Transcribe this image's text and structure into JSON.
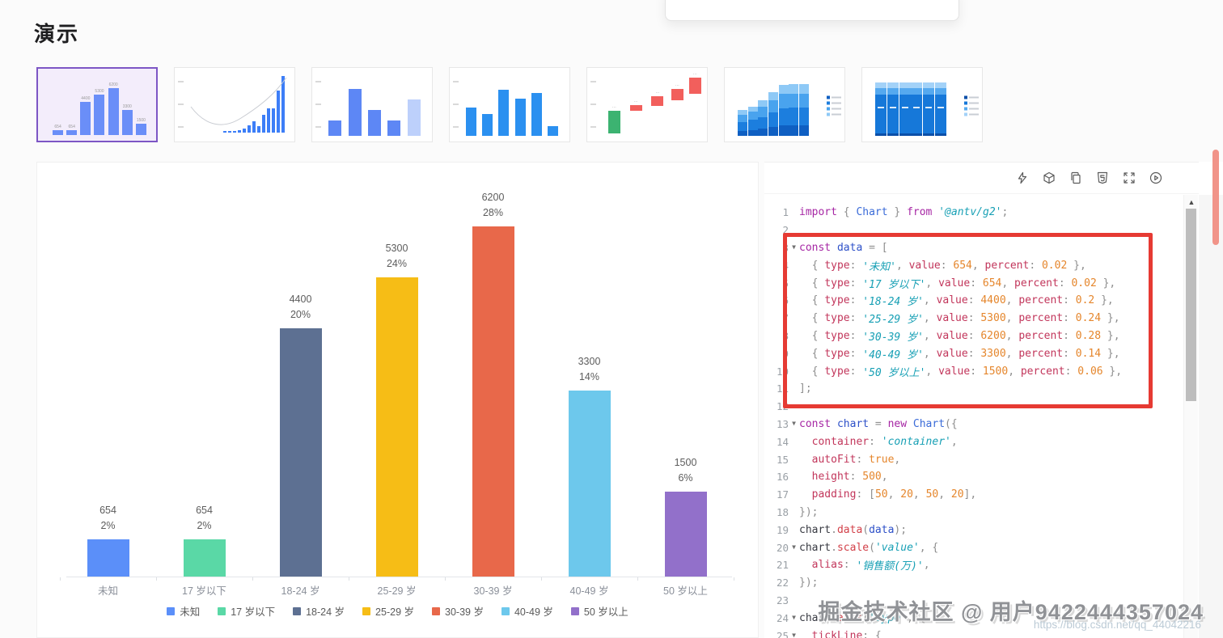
{
  "page": {
    "title": "演示"
  },
  "colors": {
    "thumb_selected_border": "#7d56c5",
    "thumb_selected_bg": "#f3edfb",
    "annotation_red": "#e63a33",
    "page_scrollbar": "#f19489"
  },
  "thumbnails": [
    {
      "name": "labeled-column-chart",
      "selected": true,
      "kind": "bars",
      "color": "#6a8ef8",
      "values": [
        654,
        654,
        4400,
        5300,
        6200,
        3300,
        1500
      ],
      "max": 6200,
      "show_labels": true,
      "axis": false
    },
    {
      "name": "curve-column-chart",
      "selected": false,
      "kind": "curve",
      "color": "#3d7ef7"
    },
    {
      "name": "basic-column-chart",
      "selected": false,
      "kind": "bars",
      "color": "#5d87f5",
      "values": [
        32,
        100,
        56,
        32,
        78
      ],
      "max": 100,
      "last_light": "#bdd0fb",
      "axis": true
    },
    {
      "name": "blue-column-chart",
      "selected": false,
      "kind": "bars",
      "color": "#2b90f0",
      "values": [
        60,
        46,
        98,
        80,
        92,
        20
      ],
      "max": 100,
      "axis": true
    },
    {
      "name": "waterfall-chart",
      "selected": false,
      "kind": "waterfall",
      "green": "#3cb371",
      "red": "#f25f5c"
    },
    {
      "name": "stacked-column-ascending",
      "selected": false,
      "kind": "stacked1",
      "totals": [
        48,
        55,
        66,
        82,
        96,
        97,
        97
      ],
      "segment_colors": [
        "#0f5fc2",
        "#1c7ede",
        "#49a3ee",
        "#8ec9f6"
      ],
      "fractions": [
        0.2,
        0.34,
        0.28,
        0.18
      ]
    },
    {
      "name": "stacked-column-full",
      "selected": false,
      "kind": "stacked2",
      "count": 6,
      "segment_colors": [
        "#0b4fa8",
        "#1678d9",
        "#55a9ef",
        "#a3d2f8"
      ],
      "fractions": [
        0.05,
        0.72,
        0.13,
        0.1
      ]
    }
  ],
  "chart_data": {
    "type": "bar",
    "categories": [
      "未知",
      "17 岁以下",
      "18-24 岁",
      "25-29 岁",
      "30-39 岁",
      "40-49 岁",
      "50 岁以上"
    ],
    "values": [
      654,
      654,
      4400,
      5300,
      6200,
      3300,
      1500
    ],
    "percent_labels": [
      "2%",
      "2%",
      "20%",
      "24%",
      "28%",
      "14%",
      "6%"
    ],
    "colors": [
      "#5B8FF9",
      "#5AD8A6",
      "#5D7092",
      "#F6BD16",
      "#E8684A",
      "#6DC8EC",
      "#9270CA"
    ],
    "legend": [
      "未知",
      "17 岁以下",
      "18-24 岁",
      "25-29 岁",
      "30-39 岁",
      "40-49 岁",
      "50 岁以上"
    ],
    "legend_position": "bottom",
    "grid": false,
    "title": "",
    "xlabel": "",
    "ylabel": "",
    "ylim": [
      0,
      6200
    ]
  },
  "editor": {
    "toolbar_icons": [
      "thunderbolt-icon",
      "codesandbox-icon",
      "copy-icon",
      "html5-icon",
      "fullscreen-icon",
      "play-circle-icon"
    ],
    "lines": [
      {
        "n": 1,
        "fold": false,
        "tokens": [
          [
            "kw",
            "import"
          ],
          [
            "pun",
            " { "
          ],
          [
            "cls",
            "Chart"
          ],
          [
            "pun",
            " } "
          ],
          [
            "kw",
            "from"
          ],
          [
            "pun",
            " "
          ],
          [
            "str",
            "'@antv/g2'"
          ],
          [
            "pun",
            ";"
          ]
        ]
      },
      {
        "n": 2,
        "fold": false,
        "tokens": []
      },
      {
        "n": 3,
        "fold": true,
        "tokens": [
          [
            "kw",
            "const"
          ],
          [
            "pun",
            " "
          ],
          [
            "def",
            "data"
          ],
          [
            "pun",
            " = ["
          ]
        ]
      },
      {
        "n": 4,
        "fold": false,
        "tokens": [
          [
            "pun",
            "  { "
          ],
          [
            "prop",
            "type"
          ],
          [
            "pun",
            ": "
          ],
          [
            "str",
            "'未知'"
          ],
          [
            "pun",
            ", "
          ],
          [
            "prop",
            "value"
          ],
          [
            "pun",
            ": "
          ],
          [
            "num",
            "654"
          ],
          [
            "pun",
            ", "
          ],
          [
            "prop",
            "percent"
          ],
          [
            "pun",
            ": "
          ],
          [
            "num",
            "0.02"
          ],
          [
            "pun",
            " },"
          ]
        ]
      },
      {
        "n": 5,
        "fold": false,
        "tokens": [
          [
            "pun",
            "  { "
          ],
          [
            "prop",
            "type"
          ],
          [
            "pun",
            ": "
          ],
          [
            "str",
            "'17 岁以下'"
          ],
          [
            "pun",
            ", "
          ],
          [
            "prop",
            "value"
          ],
          [
            "pun",
            ": "
          ],
          [
            "num",
            "654"
          ],
          [
            "pun",
            ", "
          ],
          [
            "prop",
            "percent"
          ],
          [
            "pun",
            ": "
          ],
          [
            "num",
            "0.02"
          ],
          [
            "pun",
            " },"
          ]
        ]
      },
      {
        "n": 6,
        "fold": false,
        "tokens": [
          [
            "pun",
            "  { "
          ],
          [
            "prop",
            "type"
          ],
          [
            "pun",
            ": "
          ],
          [
            "str",
            "'18-24 岁'"
          ],
          [
            "pun",
            ", "
          ],
          [
            "prop",
            "value"
          ],
          [
            "pun",
            ": "
          ],
          [
            "num",
            "4400"
          ],
          [
            "pun",
            ", "
          ],
          [
            "prop",
            "percent"
          ],
          [
            "pun",
            ": "
          ],
          [
            "num",
            "0.2"
          ],
          [
            "pun",
            " },"
          ]
        ]
      },
      {
        "n": 7,
        "fold": false,
        "tokens": [
          [
            "pun",
            "  { "
          ],
          [
            "prop",
            "type"
          ],
          [
            "pun",
            ": "
          ],
          [
            "str",
            "'25-29 岁'"
          ],
          [
            "pun",
            ", "
          ],
          [
            "prop",
            "value"
          ],
          [
            "pun",
            ": "
          ],
          [
            "num",
            "5300"
          ],
          [
            "pun",
            ", "
          ],
          [
            "prop",
            "percent"
          ],
          [
            "pun",
            ": "
          ],
          [
            "num",
            "0.24"
          ],
          [
            "pun",
            " },"
          ]
        ]
      },
      {
        "n": 8,
        "fold": false,
        "tokens": [
          [
            "pun",
            "  { "
          ],
          [
            "prop",
            "type"
          ],
          [
            "pun",
            ": "
          ],
          [
            "str",
            "'30-39 岁'"
          ],
          [
            "pun",
            ", "
          ],
          [
            "prop",
            "value"
          ],
          [
            "pun",
            ": "
          ],
          [
            "num",
            "6200"
          ],
          [
            "pun",
            ", "
          ],
          [
            "prop",
            "percent"
          ],
          [
            "pun",
            ": "
          ],
          [
            "num",
            "0.28"
          ],
          [
            "pun",
            " },"
          ]
        ]
      },
      {
        "n": 9,
        "fold": false,
        "tokens": [
          [
            "pun",
            "  { "
          ],
          [
            "prop",
            "type"
          ],
          [
            "pun",
            ": "
          ],
          [
            "str",
            "'40-49 岁'"
          ],
          [
            "pun",
            ", "
          ],
          [
            "prop",
            "value"
          ],
          [
            "pun",
            ": "
          ],
          [
            "num",
            "3300"
          ],
          [
            "pun",
            ", "
          ],
          [
            "prop",
            "percent"
          ],
          [
            "pun",
            ": "
          ],
          [
            "num",
            "0.14"
          ],
          [
            "pun",
            " },"
          ]
        ]
      },
      {
        "n": 10,
        "fold": false,
        "tokens": [
          [
            "pun",
            "  { "
          ],
          [
            "prop",
            "type"
          ],
          [
            "pun",
            ": "
          ],
          [
            "str",
            "'50 岁以上'"
          ],
          [
            "pun",
            ", "
          ],
          [
            "prop",
            "value"
          ],
          [
            "pun",
            ": "
          ],
          [
            "num",
            "1500"
          ],
          [
            "pun",
            ", "
          ],
          [
            "prop",
            "percent"
          ],
          [
            "pun",
            ": "
          ],
          [
            "num",
            "0.06"
          ],
          [
            "pun",
            " },"
          ]
        ]
      },
      {
        "n": 11,
        "fold": false,
        "tokens": [
          [
            "pun",
            "];"
          ]
        ]
      },
      {
        "n": 12,
        "fold": false,
        "tokens": []
      },
      {
        "n": 13,
        "fold": true,
        "tokens": [
          [
            "kw",
            "const"
          ],
          [
            "pun",
            " "
          ],
          [
            "def",
            "chart"
          ],
          [
            "pun",
            " = "
          ],
          [
            "kw",
            "new"
          ],
          [
            "pun",
            " "
          ],
          [
            "cls",
            "Chart"
          ],
          [
            "pun",
            "({"
          ]
        ]
      },
      {
        "n": 14,
        "fold": false,
        "tokens": [
          [
            "pun",
            "  "
          ],
          [
            "prop",
            "container"
          ],
          [
            "pun",
            ": "
          ],
          [
            "str",
            "'container'"
          ],
          [
            "pun",
            ","
          ]
        ]
      },
      {
        "n": 15,
        "fold": false,
        "tokens": [
          [
            "pun",
            "  "
          ],
          [
            "prop",
            "autoFit"
          ],
          [
            "pun",
            ": "
          ],
          [
            "num",
            "true"
          ],
          [
            "pun",
            ","
          ]
        ]
      },
      {
        "n": 16,
        "fold": false,
        "tokens": [
          [
            "pun",
            "  "
          ],
          [
            "prop",
            "height"
          ],
          [
            "pun",
            ": "
          ],
          [
            "num",
            "500"
          ],
          [
            "pun",
            ","
          ]
        ]
      },
      {
        "n": 17,
        "fold": false,
        "tokens": [
          [
            "pun",
            "  "
          ],
          [
            "prop",
            "padding"
          ],
          [
            "pun",
            ": ["
          ],
          [
            "num",
            "50"
          ],
          [
            "pun",
            ", "
          ],
          [
            "num",
            "20"
          ],
          [
            "pun",
            ", "
          ],
          [
            "num",
            "50"
          ],
          [
            "pun",
            ", "
          ],
          [
            "num",
            "20"
          ],
          [
            "pun",
            "],"
          ]
        ]
      },
      {
        "n": 18,
        "fold": false,
        "tokens": [
          [
            "pun",
            "});"
          ]
        ]
      },
      {
        "n": 19,
        "fold": false,
        "tokens": [
          [
            "id",
            "chart"
          ],
          [
            "pun",
            "."
          ],
          [
            "meth",
            "data"
          ],
          [
            "pun",
            "("
          ],
          [
            "def",
            "data"
          ],
          [
            "pun",
            ");"
          ]
        ]
      },
      {
        "n": 20,
        "fold": true,
        "tokens": [
          [
            "id",
            "chart"
          ],
          [
            "pun",
            "."
          ],
          [
            "meth",
            "scale"
          ],
          [
            "pun",
            "("
          ],
          [
            "str",
            "'value'"
          ],
          [
            "pun",
            ", {"
          ]
        ]
      },
      {
        "n": 21,
        "fold": false,
        "tokens": [
          [
            "pun",
            "  "
          ],
          [
            "prop",
            "alias"
          ],
          [
            "pun",
            ": "
          ],
          [
            "str",
            "'销售额(万)'"
          ],
          [
            "pun",
            ","
          ]
        ]
      },
      {
        "n": 22,
        "fold": false,
        "tokens": [
          [
            "pun",
            "});"
          ]
        ]
      },
      {
        "n": 23,
        "fold": false,
        "tokens": []
      },
      {
        "n": 24,
        "fold": true,
        "tokens": [
          [
            "id",
            "chart"
          ],
          [
            "pun",
            "."
          ],
          [
            "meth",
            "axis"
          ],
          [
            "pun",
            "("
          ],
          [
            "str",
            "'type'"
          ],
          [
            "pun",
            ", {"
          ]
        ]
      },
      {
        "n": 25,
        "fold": true,
        "tokens": [
          [
            "pun",
            "  "
          ],
          [
            "prop",
            "tickLine"
          ],
          [
            "pun",
            ": {"
          ]
        ]
      }
    ]
  },
  "watermark": {
    "text": "掘金技术社区 @ 用户9422444357024",
    "url": "https://blog.csdn.net/qq_44042216"
  }
}
